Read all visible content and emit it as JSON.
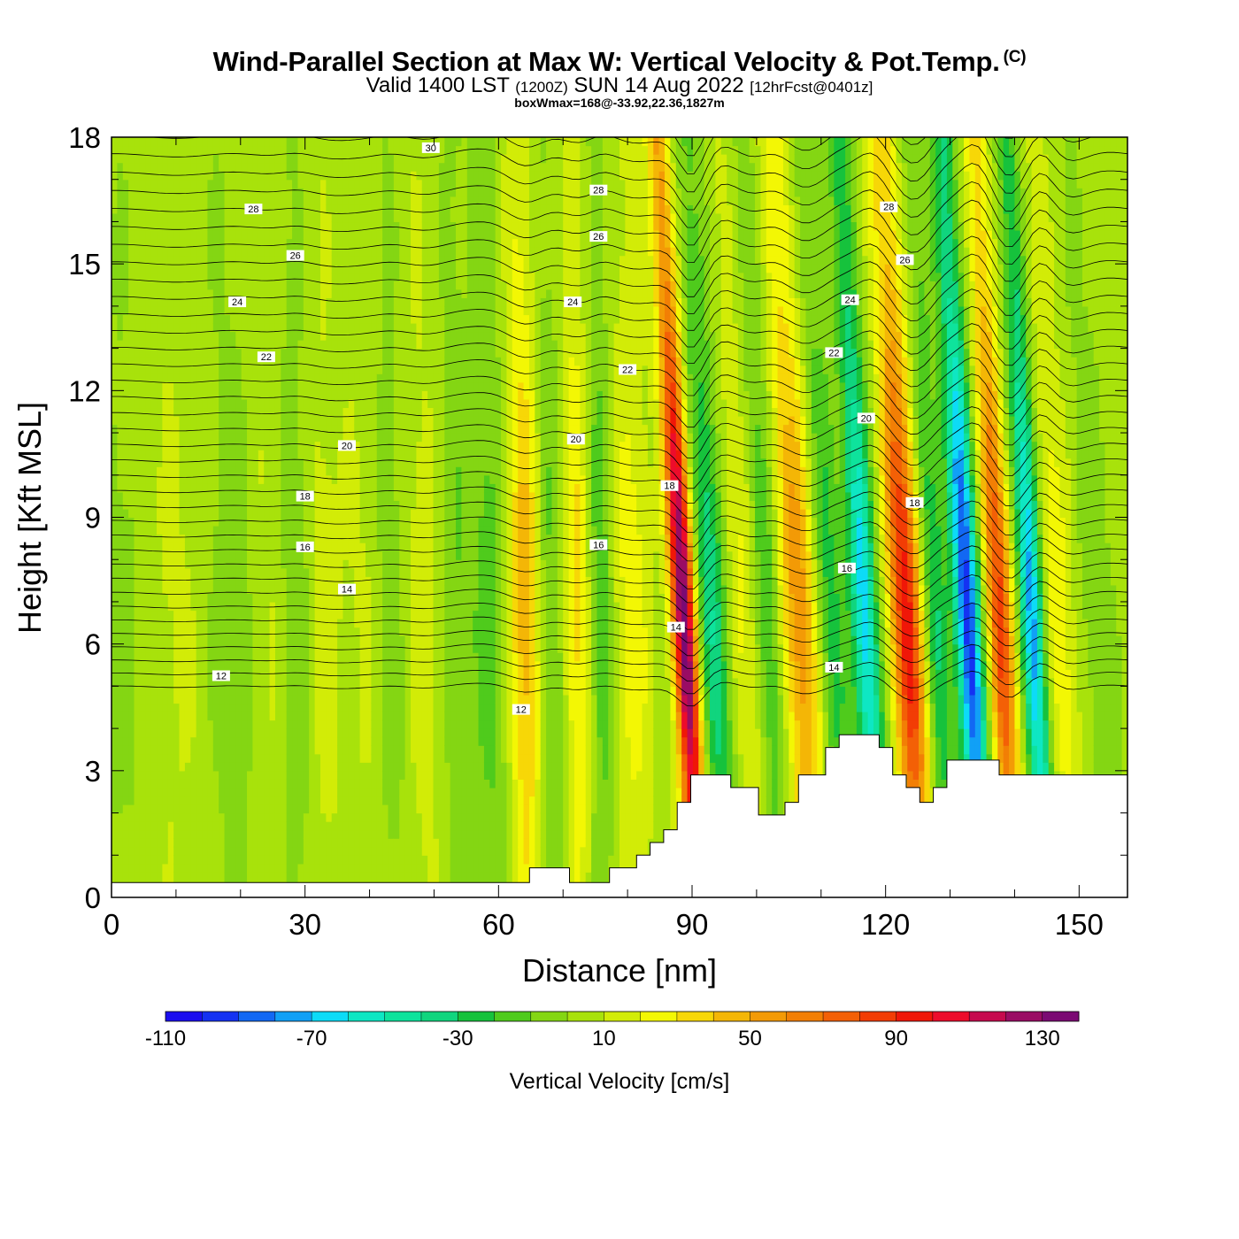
{
  "header": {
    "title": "Wind-Parallel Section at Max W: Vertical Velocity & Pot.Temp.",
    "copyright": "(C)",
    "valid_prefix": "Valid 1400 LST",
    "valid_utc": "(1200Z)",
    "valid_date": "SUN 14 Aug 2022",
    "forecast": "[12hrFcst@0401z]",
    "box_info": "boxWmax=168@-33.92,22.36,1827m"
  },
  "chart_data": {
    "type": "heatmap",
    "title": "Wind-Parallel Section at Max W: Vertical Velocity & Pot.Temp.",
    "xlabel": "Distance [nm]",
    "ylabel": "Height [Kft MSL]",
    "xlim": [
      0,
      157.5
    ],
    "ylim": [
      0,
      18
    ],
    "xticks": [
      0,
      30,
      60,
      90,
      120,
      150
    ],
    "yticks": [
      0,
      3,
      6,
      9,
      12,
      15,
      18
    ],
    "colorbar": {
      "label": "Vertical Velocity [cm/s]",
      "tick_labels": [
        "-110",
        "-70",
        "-30",
        "10",
        "50",
        "90",
        "130"
      ],
      "levels": [
        -110,
        -100,
        -90,
        -80,
        -70,
        -60,
        -50,
        -40,
        -30,
        -20,
        -10,
        0,
        10,
        20,
        30,
        40,
        50,
        60,
        70,
        80,
        90,
        100,
        110,
        120,
        130,
        140
      ],
      "colors": [
        "#1b0eef",
        "#1432f2",
        "#1268f3",
        "#11a0f6",
        "#0ddbf7",
        "#0ee7c3",
        "#0ee39c",
        "#10d57e",
        "#16c23c",
        "#4fcb1c",
        "#84d613",
        "#a8e20b",
        "#d2ec07",
        "#f3f704",
        "#f7d707",
        "#f4b606",
        "#f39a06",
        "#f27f05",
        "#f36006",
        "#f23d05",
        "#f01708",
        "#ed0c2b",
        "#c60a4e",
        "#9a0c64",
        "#7b0a73"
      ]
    },
    "terrain_kft": [
      [
        0,
        0.35
      ],
      [
        64.8,
        0.35
      ],
      [
        64.8,
        0.7
      ],
      [
        71,
        0.7
      ],
      [
        71,
        0.35
      ],
      [
        77.2,
        0.35
      ],
      [
        77.2,
        0.7
      ],
      [
        81.4,
        0.7
      ],
      [
        81.4,
        1.0
      ],
      [
        83.5,
        1.0
      ],
      [
        83.5,
        1.3
      ],
      [
        85.6,
        1.3
      ],
      [
        85.6,
        1.6
      ],
      [
        87.7,
        1.6
      ],
      [
        87.7,
        2.25
      ],
      [
        89.8,
        2.25
      ],
      [
        89.8,
        2.9
      ],
      [
        96,
        2.9
      ],
      [
        96,
        2.6
      ],
      [
        100.3,
        2.6
      ],
      [
        100.3,
        1.95
      ],
      [
        104.4,
        1.95
      ],
      [
        104.4,
        2.25
      ],
      [
        106.5,
        2.25
      ],
      [
        106.5,
        2.9
      ],
      [
        110.7,
        2.9
      ],
      [
        110.7,
        3.55
      ],
      [
        112.8,
        3.55
      ],
      [
        112.8,
        3.85
      ],
      [
        119,
        3.85
      ],
      [
        119,
        3.55
      ],
      [
        121.1,
        3.55
      ],
      [
        121.1,
        2.9
      ],
      [
        123.2,
        2.9
      ],
      [
        123.2,
        2.6
      ],
      [
        125.3,
        2.6
      ],
      [
        125.3,
        2.25
      ],
      [
        127.4,
        2.25
      ],
      [
        127.4,
        2.6
      ],
      [
        129.5,
        2.6
      ],
      [
        129.5,
        3.25
      ],
      [
        137.6,
        3.25
      ],
      [
        137.6,
        2.9
      ],
      [
        157.5,
        2.9
      ]
    ],
    "bands": [
      {
        "x": 2,
        "w": 4,
        "v": -8
      },
      {
        "x": 10,
        "w": 5,
        "v": 8
      },
      {
        "x": 19,
        "w": 4,
        "v": -10
      },
      {
        "x": 25,
        "w": 3,
        "v": 8
      },
      {
        "x": 29,
        "w": 2.5,
        "v": -16
      },
      {
        "x": 33,
        "w": 3,
        "v": 12
      },
      {
        "x": 40,
        "w": 3.5,
        "v": 8
      },
      {
        "x": 43.5,
        "w": 2.5,
        "v": -14
      },
      {
        "x": 48.5,
        "w": 3,
        "v": 12
      },
      {
        "x": 54,
        "w": 2.5,
        "v": -14
      },
      {
        "x": 59,
        "w": 2.5,
        "v": -20
      },
      {
        "x": 64.5,
        "w": 2.5,
        "v": 44
      },
      {
        "x": 68.5,
        "w": 2.5,
        "v": -20
      },
      {
        "x": 72.5,
        "w": 2.5,
        "v": 32
      },
      {
        "x": 76,
        "w": 2,
        "v": -26
      },
      {
        "x": 81,
        "w": 3,
        "v": 22
      },
      {
        "x": 90,
        "w": 1.8,
        "v": 135
      },
      {
        "x": 94.5,
        "w": 2.5,
        "v": -45
      },
      {
        "x": 99,
        "w": 3,
        "v": 20
      },
      {
        "x": 103,
        "w": 2,
        "v": -30
      },
      {
        "x": 108,
        "w": 3,
        "v": 55
      },
      {
        "x": 112.5,
        "w": 2.5,
        "v": -32
      },
      {
        "x": 118,
        "w": 2,
        "v": -70
      },
      {
        "x": 124.5,
        "w": 2.5,
        "v": 92
      },
      {
        "x": 129,
        "w": 2,
        "v": -36
      },
      {
        "x": 134,
        "w": 2,
        "v": -100
      },
      {
        "x": 139,
        "w": 2,
        "v": 80
      },
      {
        "x": 144,
        "w": 1.8,
        "v": -80
      },
      {
        "x": 148,
        "w": 2.5,
        "v": 25
      },
      {
        "x": 154,
        "w": 2.5,
        "v": -12
      }
    ],
    "isentrope_labels": [
      {
        "text": "30",
        "x": 49.5,
        "y": 17.75
      },
      {
        "text": "28",
        "x": 22,
        "y": 16.3
      },
      {
        "text": "28",
        "x": 75.5,
        "y": 16.75
      },
      {
        "text": "26",
        "x": 28.5,
        "y": 15.2
      },
      {
        "text": "26",
        "x": 75.5,
        "y": 15.65
      },
      {
        "text": "24",
        "x": 19.5,
        "y": 14.1
      },
      {
        "text": "24",
        "x": 71.5,
        "y": 14.1
      },
      {
        "text": "22",
        "x": 24,
        "y": 12.8
      },
      {
        "text": "22",
        "x": 80,
        "y": 12.5
      },
      {
        "text": "20",
        "x": 36.5,
        "y": 10.7
      },
      {
        "text": "20",
        "x": 72,
        "y": 10.85
      },
      {
        "text": "18",
        "x": 30,
        "y": 9.5
      },
      {
        "text": "18",
        "x": 86.5,
        "y": 9.75
      },
      {
        "text": "16",
        "x": 30,
        "y": 8.3
      },
      {
        "text": "16",
        "x": 75.5,
        "y": 8.35
      },
      {
        "text": "14",
        "x": 36.5,
        "y": 7.3
      },
      {
        "text": "14",
        "x": 87.5,
        "y": 6.4
      },
      {
        "text": "12",
        "x": 17,
        "y": 5.25
      },
      {
        "text": "12",
        "x": 63.5,
        "y": 4.45
      },
      {
        "text": "28",
        "x": 120.5,
        "y": 16.35
      },
      {
        "text": "26",
        "x": 123,
        "y": 15.1
      },
      {
        "text": "24",
        "x": 114.5,
        "y": 14.15
      },
      {
        "text": "22",
        "x": 112,
        "y": 12.9
      },
      {
        "text": "20",
        "x": 117,
        "y": 11.35
      },
      {
        "text": "18",
        "x": 124.5,
        "y": 9.35
      },
      {
        "text": "16",
        "x": 114,
        "y": 7.8
      },
      {
        "text": "14",
        "x": 112,
        "y": 5.45
      }
    ]
  }
}
